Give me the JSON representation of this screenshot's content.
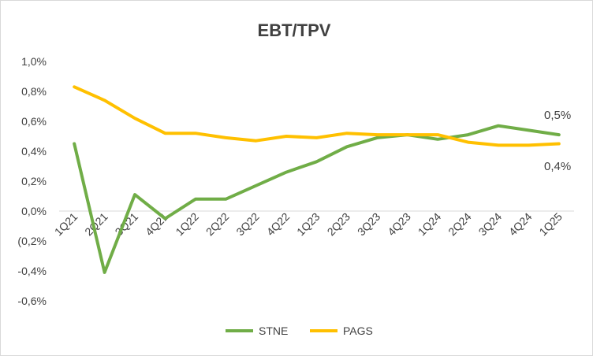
{
  "chart_data": {
    "type": "line",
    "title": "EBT/TPV",
    "xlabel": "",
    "ylabel": "",
    "categories": [
      "1Q21",
      "2Q21",
      "3Q21",
      "4Q21",
      "1Q22",
      "2Q22",
      "3Q22",
      "4Q22",
      "1Q23",
      "2Q23",
      "3Q23",
      "4Q23",
      "1Q24",
      "2Q24",
      "3Q24",
      "4Q24",
      "1Q25"
    ],
    "ylim": [
      -0.6,
      1.0
    ],
    "yticks": [
      1.0,
      0.8,
      0.6,
      0.4,
      0.2,
      0.0,
      -0.2,
      -0.4,
      -0.6
    ],
    "ytick_labels": [
      "1,0%",
      "0,8%",
      "0,6%",
      "0,4%",
      "0,2%",
      "0,0%",
      "(0,2%",
      "-0,4%",
      "-0,6%"
    ],
    "grid": false,
    "legend_position": "bottom",
    "series": [
      {
        "name": "STNE",
        "color": "#70ad47",
        "values": [
          0.45,
          -0.41,
          0.11,
          -0.05,
          0.08,
          0.08,
          0.17,
          0.26,
          0.33,
          0.43,
          0.49,
          0.51,
          0.48,
          0.51,
          0.57,
          0.54,
          0.51
        ]
      },
      {
        "name": "PAGS",
        "color": "#ffc000",
        "values": [
          0.83,
          0.74,
          0.62,
          0.52,
          0.52,
          0.49,
          0.47,
          0.5,
          0.49,
          0.52,
          0.51,
          0.51,
          0.51,
          0.46,
          0.44,
          0.44,
          0.45
        ]
      }
    ],
    "annotations": [
      {
        "text": "0,5%",
        "series": "STNE"
      },
      {
        "text": "0,4%",
        "series": "PAGS"
      }
    ]
  }
}
